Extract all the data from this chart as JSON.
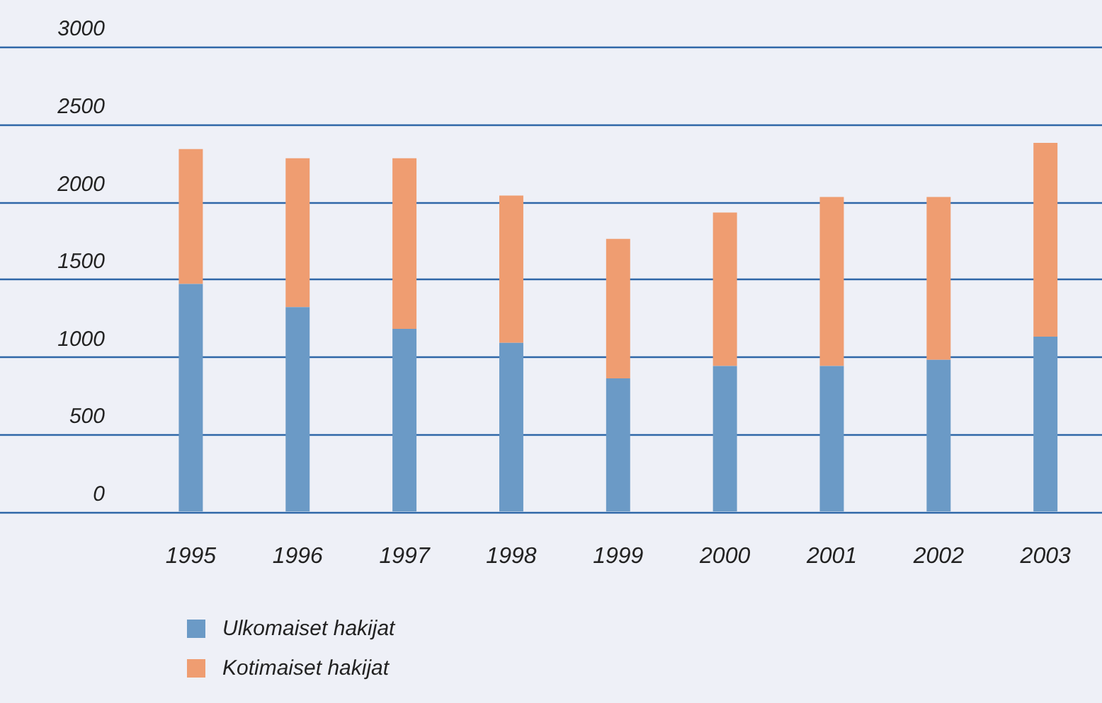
{
  "chart_data": {
    "type": "bar",
    "stacked": true,
    "categories": [
      "1995",
      "1996",
      "1997",
      "1998",
      "1999",
      "2000",
      "2001",
      "2002",
      "2003"
    ],
    "series": [
      {
        "name": "Ulkomaiset hakijat",
        "color": "#6b9ac6",
        "values": [
          1470,
          1320,
          1180,
          1090,
          860,
          940,
          940,
          980,
          1130
        ]
      },
      {
        "name": "Kotimaiset hakijat",
        "color": "#ef9d71",
        "values": [
          870,
          960,
          1100,
          950,
          900,
          990,
          1090,
          1050,
          1250
        ]
      }
    ],
    "ylim": [
      0,
      3000
    ],
    "yticks": [
      0,
      500,
      1000,
      1500,
      2000,
      2500,
      3000
    ],
    "grid": "y",
    "legend": "bottom left"
  }
}
